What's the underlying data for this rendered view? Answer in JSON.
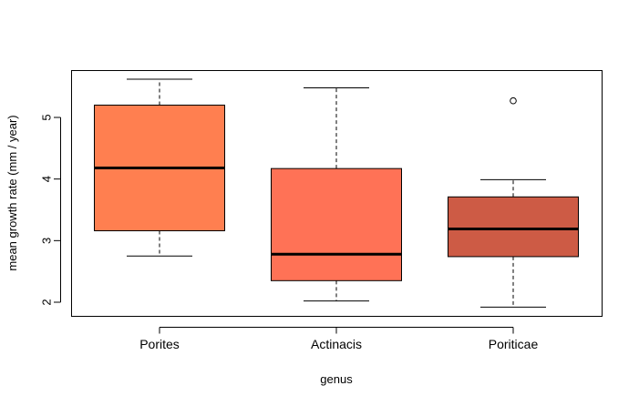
{
  "chart_data": {
    "type": "boxplot",
    "title": "",
    "xlabel": "genus",
    "ylabel": "mean growth rate (mm / year)",
    "ylim": [
      1.75,
      5.8
    ],
    "yticks": [
      2,
      3,
      4,
      5
    ],
    "categories": [
      "Porites",
      "Actinacis",
      "Poriticae"
    ],
    "boxes": [
      {
        "name": "Porites",
        "whisker_low": 2.75,
        "q1": 3.16,
        "median": 4.18,
        "q3": 5.2,
        "whisker_high": 5.62,
        "outliers": [],
        "color": "#FF7F50"
      },
      {
        "name": "Actinacis",
        "whisker_low": 2.02,
        "q1": 2.35,
        "median": 2.78,
        "q3": 4.17,
        "whisker_high": 5.48,
        "outliers": [],
        "color": "#FF7256"
      },
      {
        "name": "Poriticae",
        "whisker_low": 1.92,
        "q1": 2.74,
        "median": 3.19,
        "q3": 3.71,
        "whisker_high": 3.99,
        "outliers": [
          5.27
        ],
        "color": "#CD5B45"
      }
    ]
  }
}
